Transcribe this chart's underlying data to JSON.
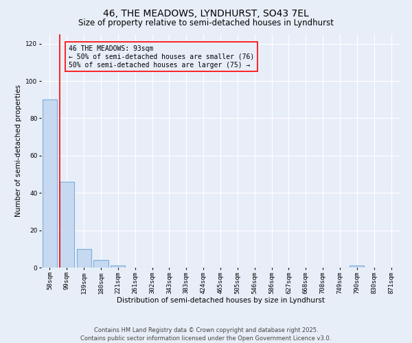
{
  "title": "46, THE MEADOWS, LYNDHURST, SO43 7EL",
  "subtitle": "Size of property relative to semi-detached houses in Lyndhurst",
  "xlabel": "Distribution of semi-detached houses by size in Lyndhurst",
  "ylabel": "Number of semi-detached properties",
  "bar_labels": [
    "58sqm",
    "99sqm",
    "139sqm",
    "180sqm",
    "221sqm",
    "261sqm",
    "302sqm",
    "343sqm",
    "383sqm",
    "424sqm",
    "465sqm",
    "505sqm",
    "546sqm",
    "586sqm",
    "627sqm",
    "668sqm",
    "708sqm",
    "749sqm",
    "790sqm",
    "830sqm",
    "871sqm"
  ],
  "bar_values": [
    90,
    46,
    10,
    4,
    1,
    0,
    0,
    0,
    0,
    0,
    0,
    0,
    0,
    0,
    0,
    0,
    0,
    0,
    1,
    0,
    0
  ],
  "bar_color": "#c6d9f0",
  "bar_edge_color": "#7aacdc",
  "ylim": [
    0,
    125
  ],
  "yticks": [
    0,
    20,
    40,
    60,
    80,
    100,
    120
  ],
  "property_label": "46 THE MEADOWS: 93sqm",
  "smaller_count": 76,
  "larger_count": 75,
  "red_line_x": 0.58,
  "footer_line1": "Contains HM Land Registry data © Crown copyright and database right 2025.",
  "footer_line2": "Contains public sector information licensed under the Open Government Licence v3.0.",
  "background_color": "#e8eef8",
  "grid_color": "#ffffff",
  "title_fontsize": 10,
  "subtitle_fontsize": 8.5,
  "axis_label_fontsize": 7.5,
  "tick_fontsize": 6.5,
  "footer_fontsize": 6,
  "annot_fontsize": 7
}
